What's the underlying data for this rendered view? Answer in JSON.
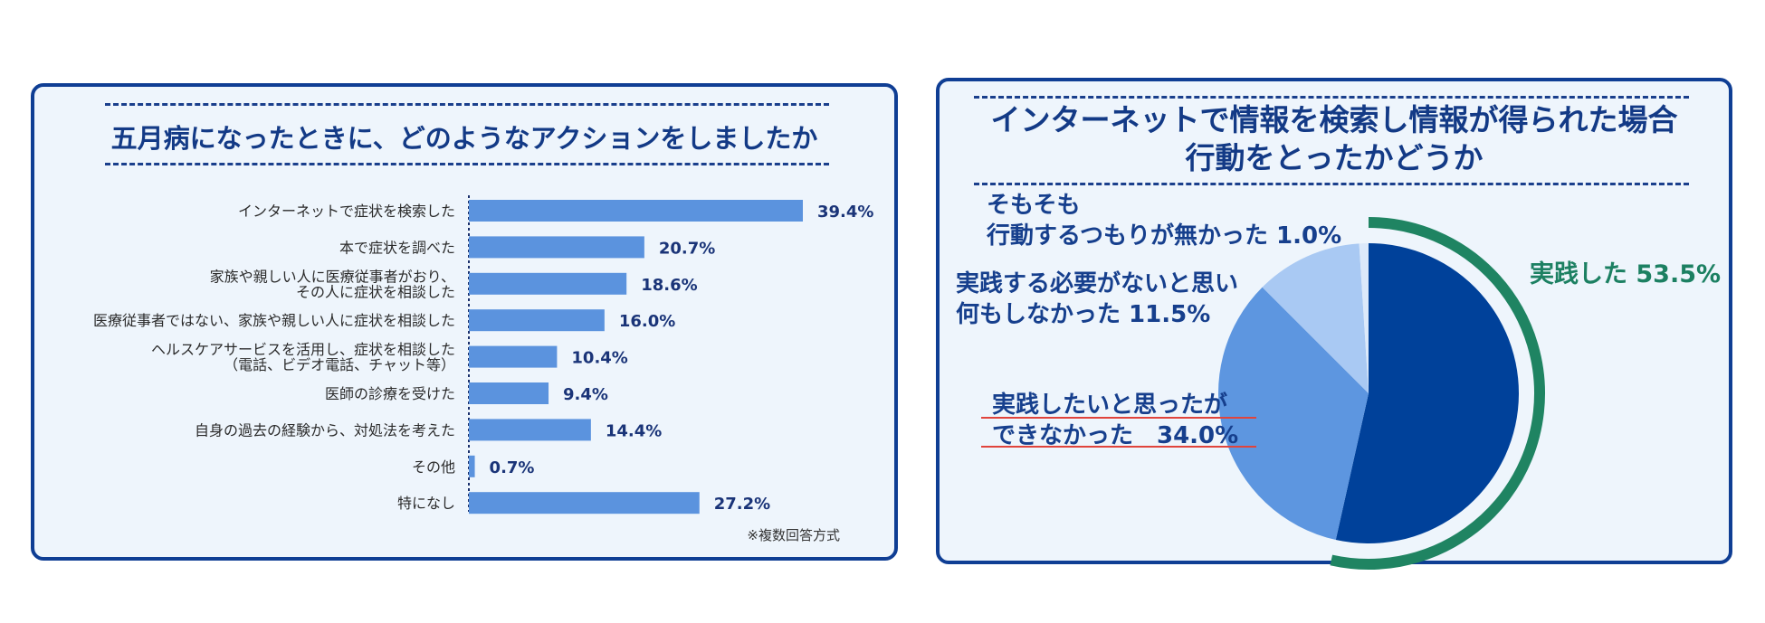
{
  "left_panel": {
    "title": "五月病になったときに、どのようなアクションをしましたか",
    "note": "※複数回答方式"
  },
  "right_panel": {
    "title_line1": "インターネットで情報を検索し情報が得られた場合",
    "title_line2": "行動をとったかどうか"
  },
  "colors": {
    "navy": "#0f3e94",
    "bar": "#5b93de",
    "pie_dark": "#00419a",
    "pie_mid": "#5d96e0",
    "pie_light": "#a9c9f3",
    "pie_lightest": "#dce9fa",
    "green": "#1f8462",
    "underline_red": "#e0443c"
  },
  "chart_data": [
    {
      "type": "bar",
      "orientation": "horizontal",
      "title": "五月病になったときに、どのようなアクションをしましたか",
      "categories": [
        [
          "インターネットで症状を検索した"
        ],
        [
          "本で症状を調べた"
        ],
        [
          "家族や親しい人に医療従事者がおり、",
          "その人に症状を相談した"
        ],
        [
          "医療従事者ではない、家族や親しい人に症状を相談した"
        ],
        [
          "ヘルスケアサービスを活用し、症状を相談した",
          "（電話、ビデオ電話、チャット等）"
        ],
        [
          "医師の診療を受けた"
        ],
        [
          "自身の過去の経験から、対処法を考えた"
        ],
        [
          "その他"
        ],
        [
          "特になし"
        ]
      ],
      "values": [
        39.4,
        20.7,
        18.6,
        16.0,
        10.4,
        9.4,
        14.4,
        0.7,
        27.2
      ],
      "value_labels": [
        "39.4%",
        "20.7%",
        "18.6%",
        "16.0%",
        "10.4%",
        "9.4%",
        "14.4%",
        "0.7%",
        "27.2%"
      ],
      "unit": "%",
      "xlim": [
        0,
        50
      ],
      "grid": false
    },
    {
      "type": "pie",
      "title": "インターネットで情報を検索し情報が得られた場合 行動をとったかどうか",
      "slices": [
        {
          "label": [
            "実践した 53.5%"
          ],
          "value": 53.5
        },
        {
          "label": [
            "実践したいと思ったが",
            "できなかった　34.0%"
          ],
          "value": 34.0
        },
        {
          "label": [
            "実践する必要がないと思い",
            "何もしなかった 11.5%"
          ],
          "value": 11.5
        },
        {
          "label": [
            "そもそも",
            "行動するつもりが無かった 1.0%"
          ],
          "value": 1.0
        }
      ],
      "start": "12 o'clock",
      "direction": "clockwise"
    }
  ]
}
